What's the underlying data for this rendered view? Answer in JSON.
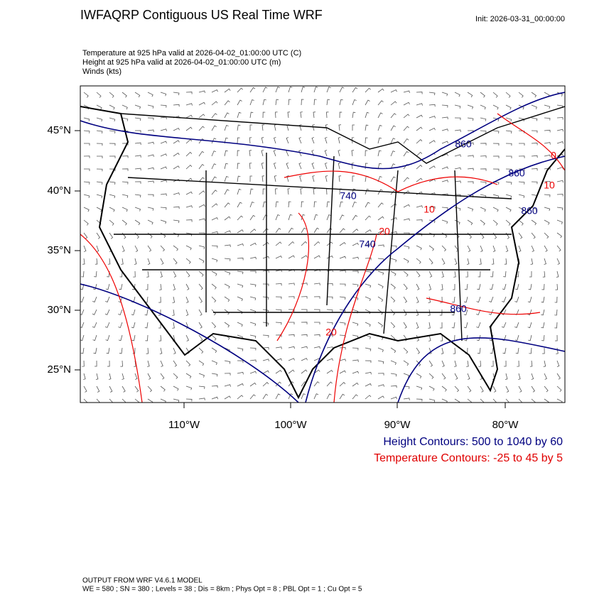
{
  "header": {
    "title": "IWFAQRP Contiguous US Real Time WRF",
    "init": "Init: 2026-03-31_00:00:00"
  },
  "fields": [
    "Temperature at 925 hPa valid at 2026-04-02_01:00:00 UTC   (C)",
    "Height at 925 hPa valid at 2026-04-02_01:00:00 UTC   (m)",
    "Winds   (kts)"
  ],
  "map": {
    "lat_labels": [
      "45°N",
      "40°N",
      "35°N",
      "30°N",
      "25°N"
    ],
    "lon_labels": [
      "110°W",
      "100°W",
      "90°W",
      "80°W"
    ],
    "contour_labels": [
      "860",
      "860",
      "860",
      "740",
      "740",
      "860",
      "20",
      "10",
      "20",
      "0",
      "10"
    ]
  },
  "legend": {
    "height": "Height Contours: 500 to 1040 by 60",
    "temperature": "Temperature Contours: -25 to 45 by 5"
  },
  "footer": [
    "OUTPUT FROM WRF V4.6.1 MODEL",
    "WE = 580 ; SN = 380 ; Levels = 38 ; Dis = 8km ; Phys Opt = 8 ; PBL Opt = 1 ; Cu Opt = 5"
  ]
}
